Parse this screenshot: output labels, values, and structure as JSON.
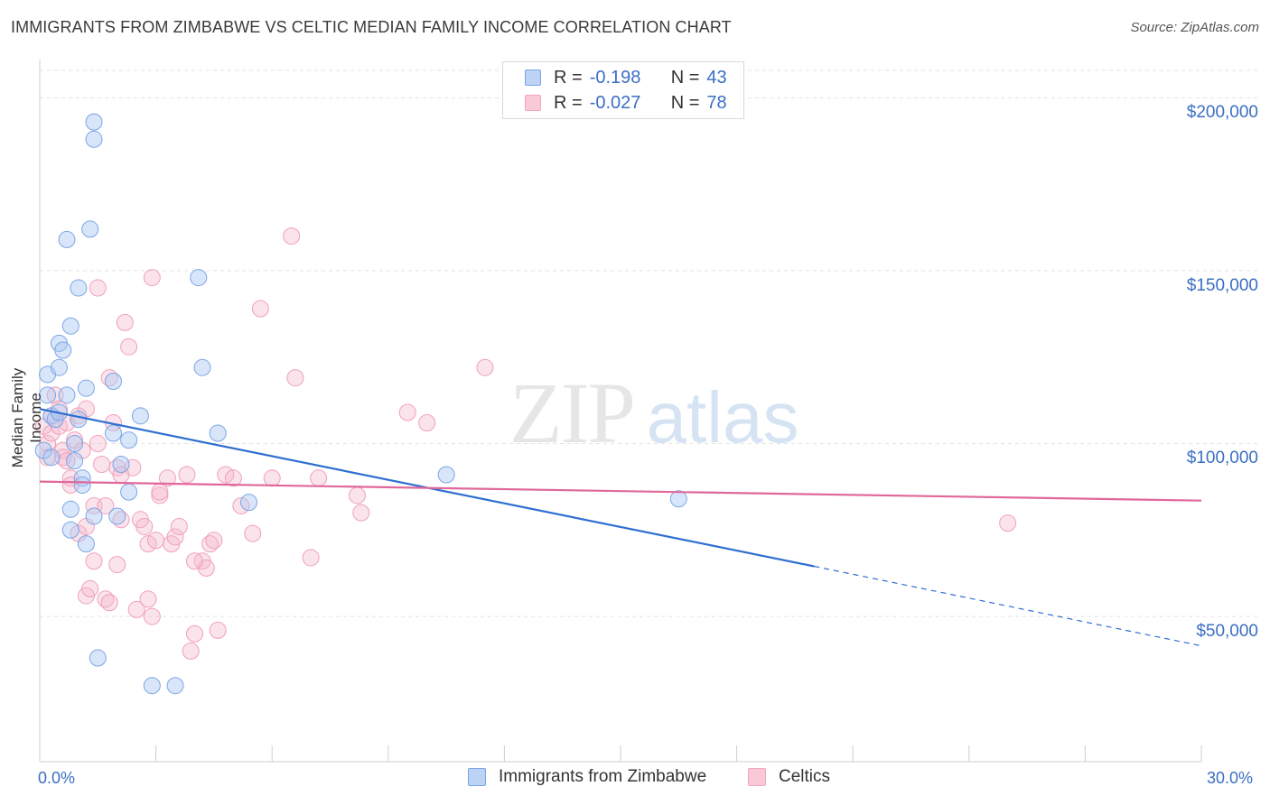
{
  "chart_data": {
    "type": "scatter",
    "title": "IMMIGRANTS FROM ZIMBABWE VS CELTIC MEDIAN FAMILY INCOME CORRELATION CHART",
    "source": "Source: ZipAtlas.com",
    "xlabel": "",
    "ylabel": "Median Family Income",
    "xlim": [
      0,
      30
    ],
    "ylim": [
      8000,
      210000
    ],
    "x_tick_labels": {
      "min": "0.0%",
      "max": "30.0%"
    },
    "y_ticks": [
      {
        "value": 50000,
        "label": "$50,000"
      },
      {
        "value": 100000,
        "label": "$100,000"
      },
      {
        "value": 150000,
        "label": "$150,000"
      },
      {
        "value": 200000,
        "label": "$200,000"
      }
    ],
    "watermark": {
      "zip": "ZIP",
      "atlas": "atlas"
    },
    "series": [
      {
        "name": "Immigrants from Zimbabwe",
        "color": "#7aa6e6",
        "line_color": "#2f6fd0",
        "r_label": "R =",
        "r_value": "-0.198",
        "n_label": "N =",
        "n_value": "43",
        "trend": {
          "x0": 0.0,
          "y0": 110000,
          "x1": 20.0,
          "y1": 64500,
          "dash_to_x": 30.0,
          "dash_to_y": 41500
        },
        "points": [
          [
            0.1,
            98000
          ],
          [
            0.2,
            120000
          ],
          [
            0.2,
            114000
          ],
          [
            0.3,
            108000
          ],
          [
            0.3,
            96000
          ],
          [
            0.4,
            107000
          ],
          [
            0.5,
            109000
          ],
          [
            0.5,
            122000
          ],
          [
            0.5,
            129000
          ],
          [
            0.6,
            127000
          ],
          [
            0.7,
            114000
          ],
          [
            0.7,
            159000
          ],
          [
            0.8,
            134000
          ],
          [
            0.8,
            81000
          ],
          [
            0.8,
            75000
          ],
          [
            0.9,
            95000
          ],
          [
            1.0,
            145000
          ],
          [
            1.0,
            107000
          ],
          [
            1.1,
            90000
          ],
          [
            1.1,
            88000
          ],
          [
            1.2,
            116000
          ],
          [
            1.2,
            71000
          ],
          [
            1.3,
            162000
          ],
          [
            1.4,
            79000
          ],
          [
            1.5,
            38000
          ],
          [
            1.4,
            193000
          ],
          [
            1.4,
            188000
          ],
          [
            1.9,
            118000
          ],
          [
            1.9,
            103000
          ],
          [
            2.0,
            79000
          ],
          [
            2.3,
            101000
          ],
          [
            2.3,
            86000
          ],
          [
            2.6,
            108000
          ],
          [
            2.9,
            30000
          ],
          [
            3.5,
            30000
          ],
          [
            4.1,
            148000
          ],
          [
            4.2,
            122000
          ],
          [
            4.6,
            103000
          ],
          [
            5.4,
            83000
          ],
          [
            10.5,
            91000
          ],
          [
            16.5,
            84000
          ],
          [
            2.1,
            94000
          ],
          [
            0.9,
            100000
          ]
        ]
      },
      {
        "name": "Celtics",
        "color": "#f3a6be",
        "line_color": "#e0689a",
        "r_label": "R =",
        "r_value": "-0.027",
        "n_label": "N =",
        "n_value": "78",
        "trend": {
          "x0": 0.0,
          "y0": 89000,
          "x1": 30.0,
          "y1": 83500
        },
        "points": [
          [
            0.1,
            105000
          ],
          [
            0.2,
            100000
          ],
          [
            0.2,
            96000
          ],
          [
            0.3,
            108000
          ],
          [
            0.3,
            103000
          ],
          [
            0.4,
            114000
          ],
          [
            0.5,
            105000
          ],
          [
            0.5,
            110000
          ],
          [
            0.6,
            98000
          ],
          [
            0.6,
            96000
          ],
          [
            0.7,
            95000
          ],
          [
            0.7,
            106000
          ],
          [
            0.8,
            90000
          ],
          [
            0.8,
            88000
          ],
          [
            0.9,
            101000
          ],
          [
            1.0,
            74000
          ],
          [
            1.0,
            108000
          ],
          [
            1.1,
            98000
          ],
          [
            1.2,
            110000
          ],
          [
            1.2,
            76000
          ],
          [
            1.2,
            56000
          ],
          [
            1.3,
            58000
          ],
          [
            1.4,
            66000
          ],
          [
            1.4,
            82000
          ],
          [
            1.5,
            100000
          ],
          [
            1.6,
            94000
          ],
          [
            1.7,
            82000
          ],
          [
            1.7,
            55000
          ],
          [
            1.8,
            119000
          ],
          [
            1.8,
            54000
          ],
          [
            1.9,
            106000
          ],
          [
            2.0,
            93000
          ],
          [
            2.0,
            65000
          ],
          [
            2.1,
            78000
          ],
          [
            2.1,
            91000
          ],
          [
            2.2,
            135000
          ],
          [
            2.3,
            128000
          ],
          [
            2.5,
            52000
          ],
          [
            2.6,
            78000
          ],
          [
            2.7,
            76000
          ],
          [
            2.8,
            71000
          ],
          [
            2.8,
            55000
          ],
          [
            2.9,
            148000
          ],
          [
            2.9,
            50000
          ],
          [
            3.0,
            72000
          ],
          [
            3.1,
            85000
          ],
          [
            3.1,
            86000
          ],
          [
            3.3,
            90000
          ],
          [
            3.4,
            71000
          ],
          [
            3.5,
            73000
          ],
          [
            3.6,
            76000
          ],
          [
            3.8,
            91000
          ],
          [
            3.9,
            40000
          ],
          [
            4.0,
            45000
          ],
          [
            4.2,
            66000
          ],
          [
            4.3,
            64000
          ],
          [
            4.4,
            71000
          ],
          [
            4.5,
            72000
          ],
          [
            4.6,
            46000
          ],
          [
            4.8,
            91000
          ],
          [
            5.0,
            90000
          ],
          [
            5.2,
            82000
          ],
          [
            5.5,
            74000
          ],
          [
            5.7,
            139000
          ],
          [
            6.0,
            90000
          ],
          [
            6.5,
            160000
          ],
          [
            6.6,
            119000
          ],
          [
            7.0,
            67000
          ],
          [
            7.2,
            90000
          ],
          [
            8.2,
            85000
          ],
          [
            8.3,
            80000
          ],
          [
            9.5,
            109000
          ],
          [
            10.0,
            106000
          ],
          [
            11.5,
            122000
          ],
          [
            25.0,
            77000
          ],
          [
            1.5,
            145000
          ],
          [
            2.4,
            93000
          ],
          [
            4.0,
            66000
          ]
        ]
      }
    ]
  }
}
